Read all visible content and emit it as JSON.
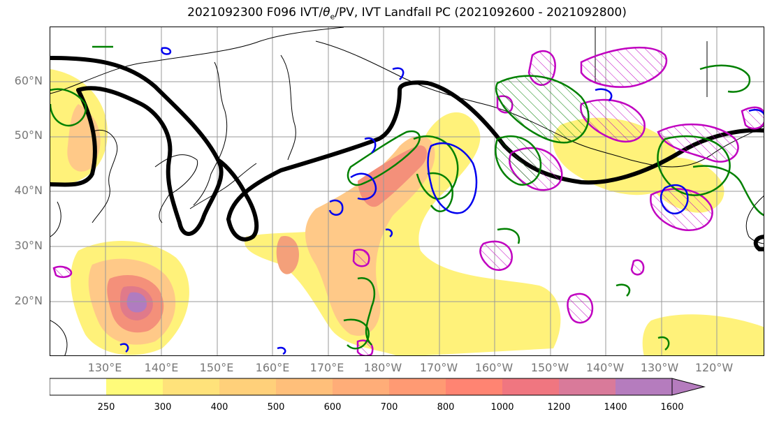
{
  "title": "2021092300 F096 IVT/θe/PV, IVT Landfall PC (2021092600 - 2021092800)",
  "title_parts": {
    "pre": "2021092300 F096 IVT/",
    "theta": "θ",
    "sub": "e",
    "post": "/PV, IVT Landfall PC (2021092600 - 2021092800)"
  },
  "lat_labels": [
    "60°N",
    "50°N",
    "40°N",
    "30°N",
    "20°N"
  ],
  "lon_labels": [
    "130°E",
    "140°E",
    "150°E",
    "160°E",
    "170°E",
    "180°W",
    "170°W",
    "160°W",
    "150°W",
    "140°W",
    "130°W",
    "120°W"
  ],
  "colorbar": {
    "ticks": [
      "250",
      "300",
      "400",
      "500",
      "600",
      "700",
      "800",
      "1000",
      "1200",
      "1400",
      "1600"
    ],
    "colors": [
      "#ffffff",
      "#fffb7a",
      "#ffe27a",
      "#ffd07a",
      "#ffbf7a",
      "#ffad78",
      "#ff9a73",
      "#ff8472",
      "#f07680",
      "#d97a9a",
      "#b57cbe"
    ]
  },
  "colors": {
    "ivt_low": "#fff27a",
    "ivt_mid": "#ffc07a",
    "ivt_high": "#f47c7c",
    "ivt_core": "#a87cc8",
    "jet_contour": "#000000",
    "pv_contour": "#0000ee",
    "theta_contour": "#008000",
    "landfall_contour": "#c000c0",
    "grid": "#999999",
    "coast": "#000000"
  }
}
